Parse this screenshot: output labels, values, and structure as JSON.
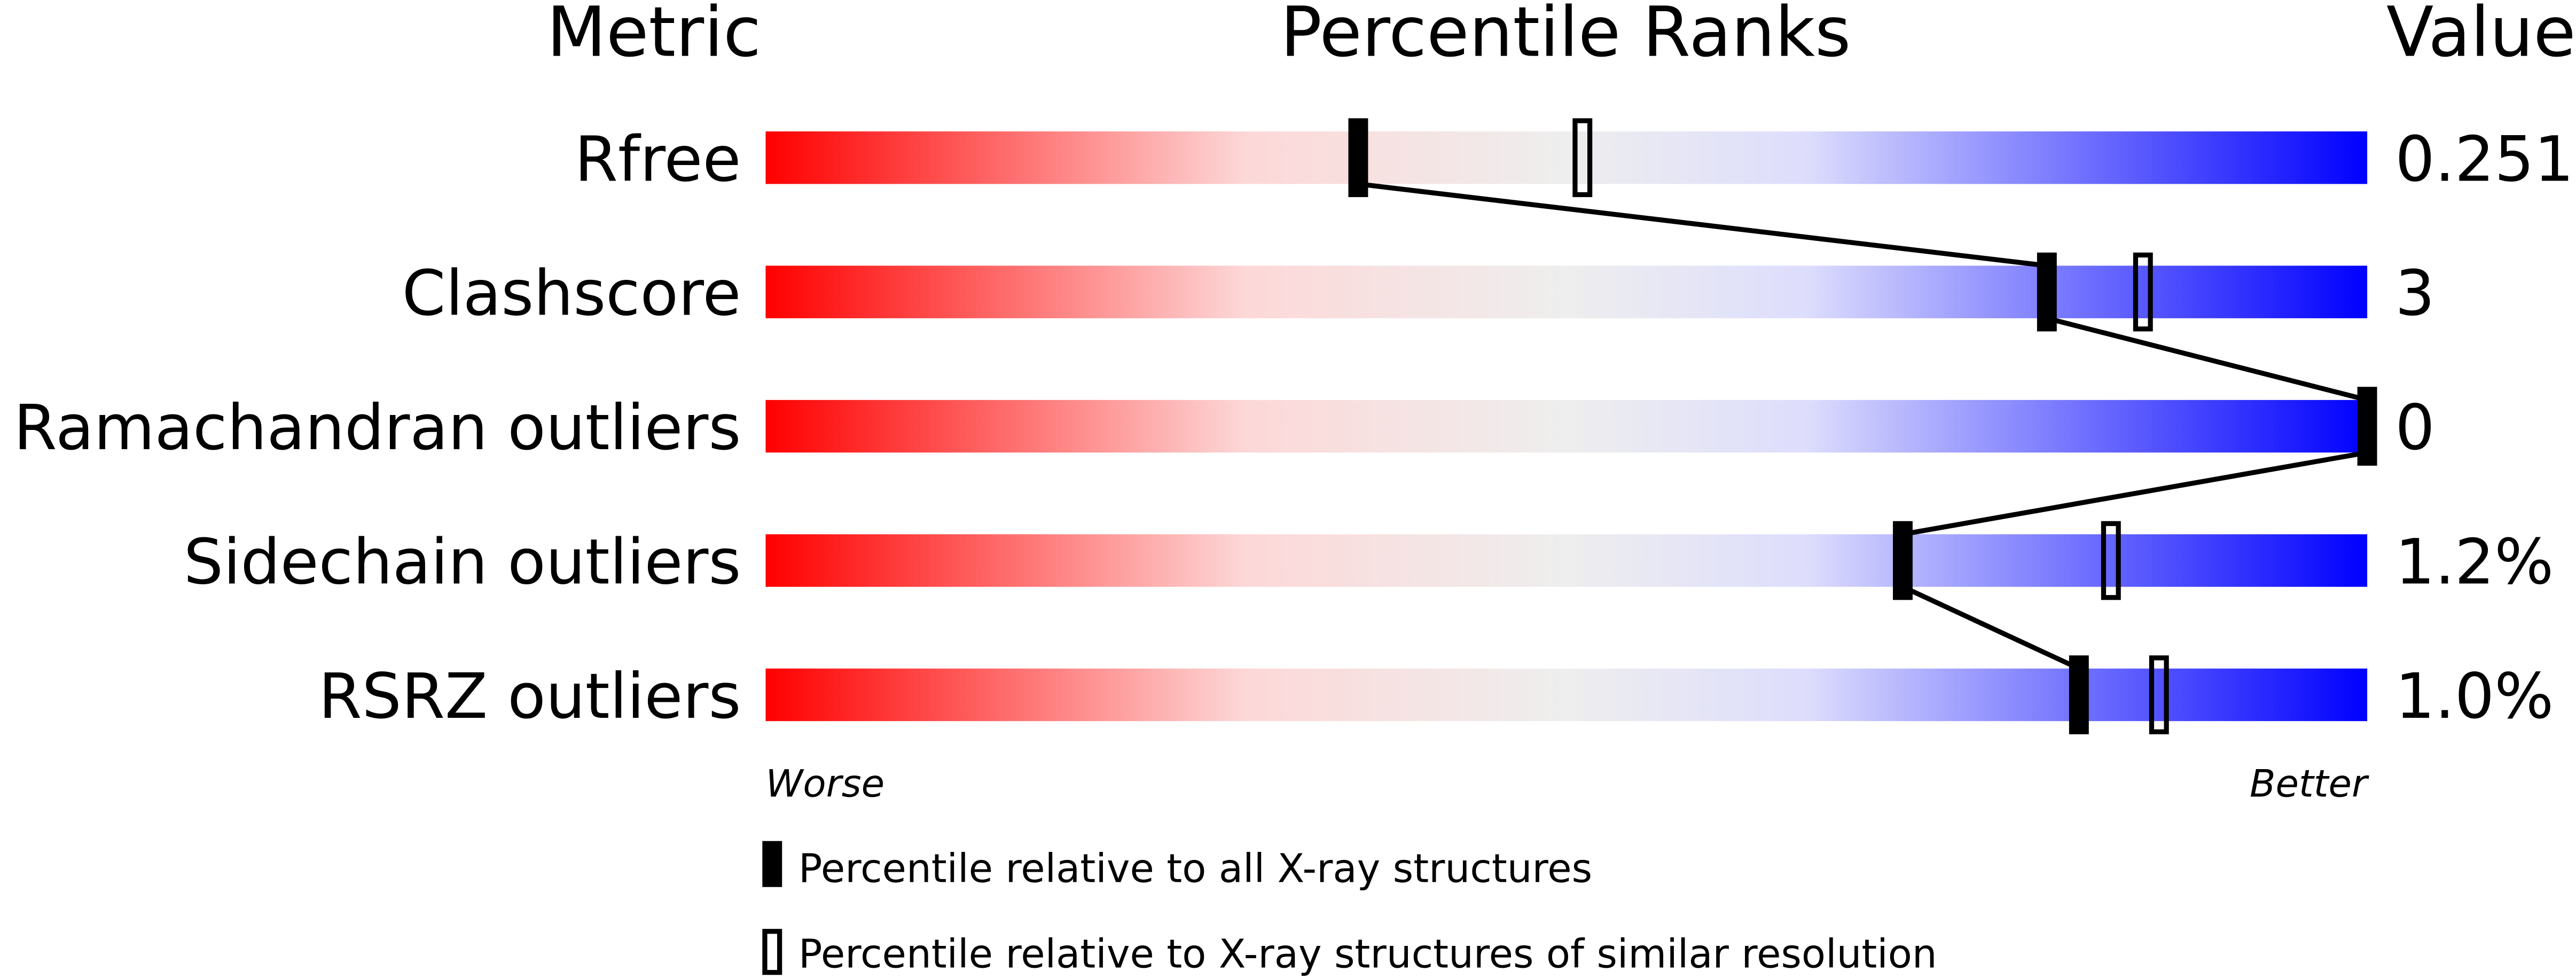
{
  "chart_data": {
    "type": "percentile-slider",
    "headers": {
      "metric": "Metric",
      "ranks": "Percentile Ranks",
      "value": "Value"
    },
    "xlim": [
      0,
      100
    ],
    "axis_labels": {
      "left": "Worse",
      "right": "Better"
    },
    "gradient_colors": [
      "#ff0000",
      "#fdd8d8",
      "#eeeeee",
      "#ddddfd",
      "#0000ff"
    ],
    "metrics": [
      {
        "name": "Rfree",
        "value": "0.251",
        "percentile_all": 37,
        "percentile_similar": 51
      },
      {
        "name": "Clashscore",
        "value": "3",
        "percentile_all": 80,
        "percentile_similar": 86
      },
      {
        "name": "Ramachandran outliers",
        "value": "0",
        "percentile_all": 100,
        "percentile_similar": null
      },
      {
        "name": "Sidechain outliers",
        "value": "1.2%",
        "percentile_all": 71,
        "percentile_similar": 84
      },
      {
        "name": "RSRZ outliers",
        "value": "1.0%",
        "percentile_all": 82,
        "percentile_similar": 87
      }
    ],
    "legend": [
      {
        "marker": "filled",
        "label": "Percentile relative to all X-ray structures"
      },
      {
        "marker": "open",
        "label": "Percentile relative to X-ray structures of similar resolution"
      }
    ]
  }
}
